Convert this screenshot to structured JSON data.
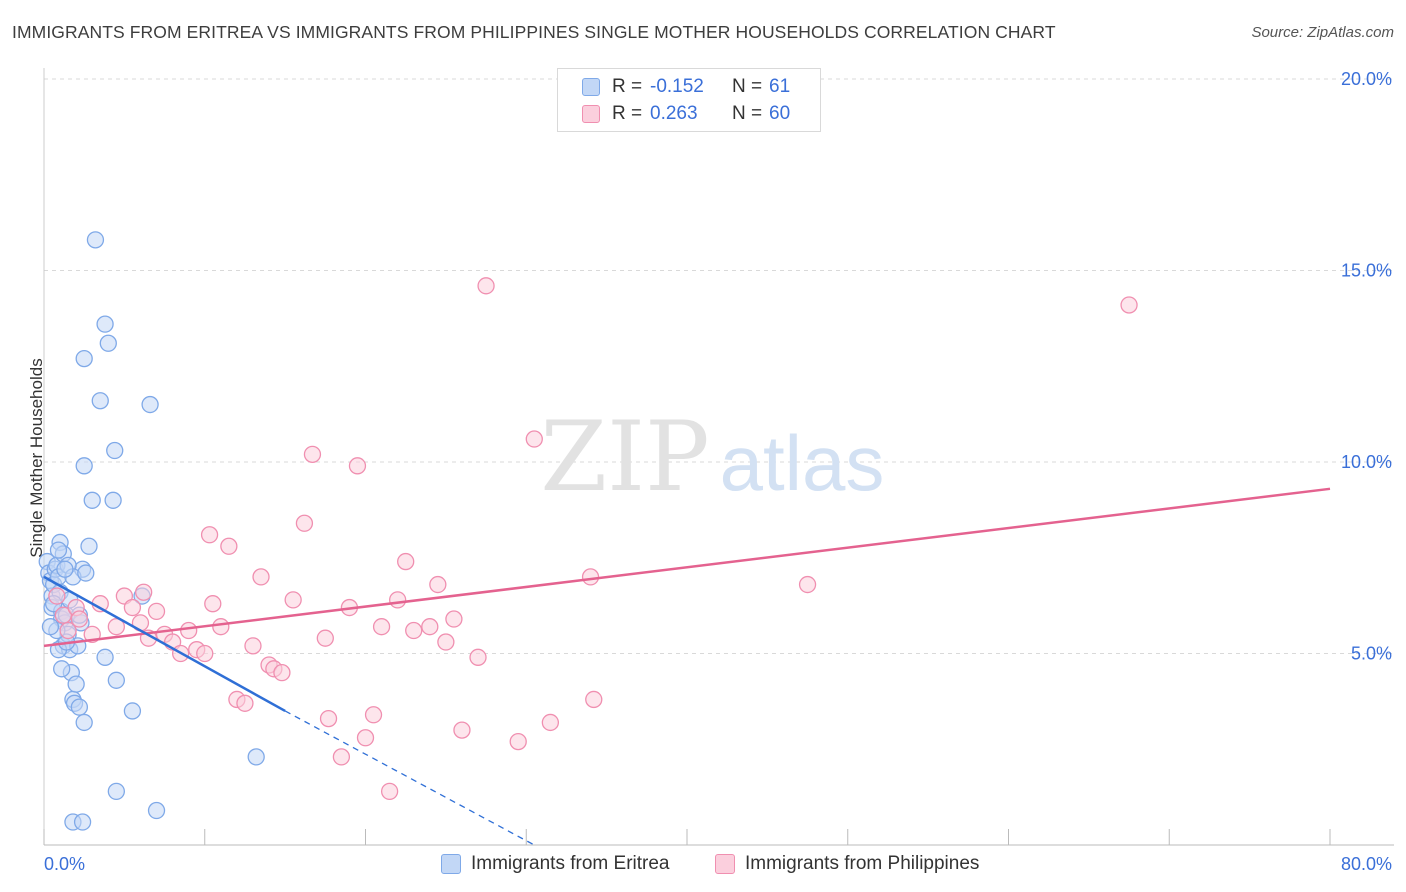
{
  "title": "IMMIGRANTS FROM ERITREA VS IMMIGRANTS FROM PHILIPPINES SINGLE MOTHER HOUSEHOLDS CORRELATION CHART",
  "source": "Source: ZipAtlas.com",
  "watermark": {
    "zip": "ZIP",
    "atlas": "atlas"
  },
  "legend": {
    "rows": [
      {
        "r_label": "R =",
        "r_value": "-0.152",
        "n_label": "N =",
        "n_value": "61",
        "color": "#7fa9e8",
        "fill": "#c2d7f6"
      },
      {
        "r_label": "R =",
        "r_value": "0.263",
        "n_label": "N =",
        "n_value": "60",
        "color": "#f08fb0",
        "fill": "#fbcfdd"
      }
    ]
  },
  "bottom_legend": {
    "eritrea": "Immigrants from Eritrea",
    "philippines": "Immigrants from Philippines"
  },
  "chart_data": {
    "type": "scatter",
    "xlabel": "",
    "ylabel": "Single Mother Households",
    "xlim": [
      0,
      80
    ],
    "ylim": [
      0,
      20
    ],
    "x_tick_labels": [
      {
        "value": 0,
        "label": "0.0%"
      },
      {
        "value": 80,
        "label": "80.0%"
      }
    ],
    "y_tick_labels": [
      {
        "value": 5,
        "label": "5.0%"
      },
      {
        "value": 10,
        "label": "10.0%"
      },
      {
        "value": 15,
        "label": "15.0%"
      },
      {
        "value": 20,
        "label": "20.0%"
      }
    ],
    "colors": {
      "eritrea_point": "#7fa9e8",
      "eritrea_fill": "#c2d7f6",
      "eritrea_line": "#2f6fd6",
      "philippines_point": "#f08fb0",
      "philippines_fill": "#fbcfdd",
      "philippines_line": "#e4628f",
      "tick_label": "#3a6fd8",
      "grid": "#d9d9d9"
    },
    "series": [
      {
        "name": "Immigrants from Eritrea",
        "points": [
          [
            0.2,
            7.4
          ],
          [
            0.3,
            7.1
          ],
          [
            0.4,
            6.9
          ],
          [
            0.5,
            6.5
          ],
          [
            0.5,
            6.2
          ],
          [
            0.6,
            6.8
          ],
          [
            0.7,
            7.2
          ],
          [
            0.8,
            7.3
          ],
          [
            0.9,
            7.0
          ],
          [
            1.0,
            6.6
          ],
          [
            1.1,
            6.1
          ],
          [
            1.1,
            5.9
          ],
          [
            1.2,
            5.2
          ],
          [
            1.3,
            5.8
          ],
          [
            1.4,
            6.0
          ],
          [
            1.5,
            5.5
          ],
          [
            1.6,
            5.1
          ],
          [
            1.7,
            4.5
          ],
          [
            1.8,
            3.8
          ],
          [
            1.9,
            3.7
          ],
          [
            2.0,
            4.2
          ],
          [
            2.1,
            5.2
          ],
          [
            2.2,
            3.6
          ],
          [
            2.3,
            5.8
          ],
          [
            2.4,
            7.2
          ],
          [
            2.5,
            3.2
          ],
          [
            1.0,
            7.9
          ],
          [
            1.2,
            7.6
          ],
          [
            1.5,
            7.3
          ],
          [
            1.8,
            7.0
          ],
          [
            0.9,
            5.1
          ],
          [
            1.4,
            5.3
          ],
          [
            2.6,
            7.1
          ],
          [
            2.8,
            7.8
          ],
          [
            3.0,
            9.0
          ],
          [
            2.5,
            9.9
          ],
          [
            2.5,
            12.7
          ],
          [
            3.5,
            11.6
          ],
          [
            3.8,
            13.6
          ],
          [
            4.0,
            13.1
          ],
          [
            3.2,
            15.8
          ],
          [
            4.4,
            10.3
          ],
          [
            3.8,
            4.9
          ],
          [
            4.5,
            4.3
          ],
          [
            5.5,
            3.5
          ],
          [
            4.3,
            9.0
          ],
          [
            6.1,
            6.5
          ],
          [
            6.6,
            11.5
          ],
          [
            4.5,
            1.4
          ],
          [
            7.0,
            0.9
          ],
          [
            1.8,
            0.6
          ],
          [
            2.4,
            0.6
          ],
          [
            13.2,
            2.3
          ],
          [
            0.6,
            6.3
          ],
          [
            0.8,
            5.6
          ],
          [
            1.3,
            7.2
          ],
          [
            0.4,
            5.7
          ],
          [
            0.9,
            7.7
          ],
          [
            1.6,
            6.4
          ],
          [
            2.2,
            6.0
          ],
          [
            1.1,
            4.6
          ]
        ],
        "trend_solid": [
          [
            0.0,
            7.0
          ],
          [
            15.0,
            3.5
          ]
        ],
        "trend_dashed": [
          [
            15.0,
            3.5
          ],
          [
            30.5,
            0.0
          ]
        ]
      },
      {
        "name": "Immigrants from Philippines",
        "points": [
          [
            0.8,
            6.5
          ],
          [
            1.2,
            6.0
          ],
          [
            1.5,
            5.6
          ],
          [
            2.0,
            6.2
          ],
          [
            2.2,
            5.9
          ],
          [
            3.0,
            5.5
          ],
          [
            3.5,
            6.3
          ],
          [
            4.5,
            5.7
          ],
          [
            5.0,
            6.5
          ],
          [
            5.5,
            6.2
          ],
          [
            6.0,
            5.8
          ],
          [
            6.5,
            5.4
          ],
          [
            7.0,
            6.1
          ],
          [
            7.5,
            5.5
          ],
          [
            8.0,
            5.3
          ],
          [
            8.5,
            5.0
          ],
          [
            9.0,
            5.6
          ],
          [
            9.5,
            5.1
          ],
          [
            10.0,
            5.0
          ],
          [
            10.5,
            6.3
          ],
          [
            11.0,
            5.7
          ],
          [
            11.5,
            7.8
          ],
          [
            12.0,
            3.8
          ],
          [
            12.5,
            3.7
          ],
          [
            13.0,
            5.2
          ],
          [
            13.5,
            7.0
          ],
          [
            14.0,
            4.7
          ],
          [
            14.3,
            4.6
          ],
          [
            14.8,
            4.5
          ],
          [
            15.5,
            6.4
          ],
          [
            16.2,
            8.4
          ],
          [
            16.7,
            10.2
          ],
          [
            17.5,
            5.4
          ],
          [
            17.7,
            3.3
          ],
          [
            18.5,
            2.3
          ],
          [
            19.0,
            6.2
          ],
          [
            19.5,
            9.9
          ],
          [
            20.0,
            2.8
          ],
          [
            20.5,
            3.4
          ],
          [
            21.0,
            5.7
          ],
          [
            21.5,
            1.4
          ],
          [
            22.0,
            6.4
          ],
          [
            22.5,
            7.4
          ],
          [
            23.0,
            5.6
          ],
          [
            24.0,
            5.7
          ],
          [
            24.5,
            6.8
          ],
          [
            25.0,
            5.3
          ],
          [
            25.5,
            5.9
          ],
          [
            26.0,
            3.0
          ],
          [
            27.0,
            4.9
          ],
          [
            27.5,
            14.6
          ],
          [
            29.5,
            2.7
          ],
          [
            30.5,
            10.6
          ],
          [
            31.5,
            3.2
          ],
          [
            34.0,
            7.0
          ],
          [
            34.2,
            3.8
          ],
          [
            47.5,
            6.8
          ],
          [
            67.5,
            14.1
          ],
          [
            6.2,
            6.6
          ],
          [
            10.3,
            8.1
          ]
        ],
        "trend_solid": [
          [
            0.0,
            5.2
          ],
          [
            80.0,
            9.3
          ]
        ]
      }
    ]
  }
}
